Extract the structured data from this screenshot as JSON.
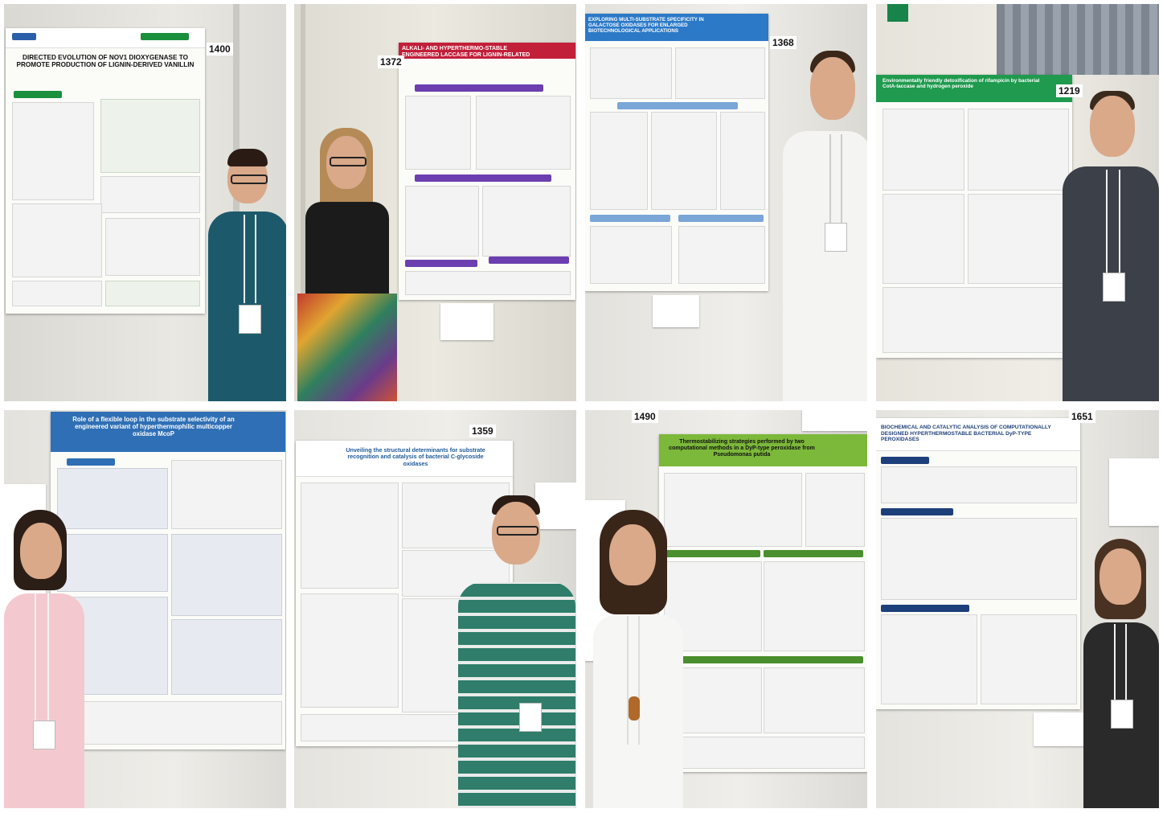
{
  "tiles": [
    {
      "number": "1400",
      "poster_title": "DIRECTED EVOLUTION OF NOV1 DIOXYGENASE TO PROMOTE PRODUCTION OF LIGNIN-DERIVED VANILLIN",
      "accent": "#1a8f3c",
      "shirt": "#1c5a6b"
    },
    {
      "number": "1372",
      "poster_title": "ALKALI- AND HYPERTHERMO-STABLE ENGINEERED LACCASE FOR LIGNIN-RELATED PHENOLICS",
      "accent": "#c21f3a",
      "shirt": "#1b1b1b"
    },
    {
      "number": "1368",
      "poster_title": "EXPLORING MULTI-SUBSTRATE SPECIFICITY IN GALACTOSE OXIDASES FOR ENLARGED BIOTECHNOLOGICAL APPLICATIONS",
      "accent": "#2b79c7",
      "shirt": "#f4f4f2"
    },
    {
      "number": "1219",
      "poster_title": "Environmentally friendly detoxification of rifampicin by bacterial CotA-laccase and hydrogen peroxide",
      "accent": "#1f9a4e",
      "shirt": "#3c4048"
    },
    {
      "number": "",
      "poster_title": "Role of a flexible loop in the substrate selectivity of an engineered variant of hyperthermophilic multicopper oxidase McoP",
      "accent": "#2f6fb5",
      "shirt": "#f3c9cf"
    },
    {
      "number": "1359",
      "poster_title": "Unveiling the structural determinants for substrate recognition and catalysis of bacterial C-glycoside oxidases",
      "accent": "#1d5a9a",
      "shirt": "#2f7d6a"
    },
    {
      "number": "1490",
      "poster_title": "Thermostabilizing strategies performed by two computational methods in a DyP-type peroxidase from Pseudomonas putida",
      "accent": "#7cb83a",
      "shirt": "#f6f6f4"
    },
    {
      "number": "1651",
      "poster_title": "BIOCHEMICAL AND CATALYTIC ANALYSIS OF COMPUTATIONALLY DESIGNED HYPERTHERMOSTABLE BACTERIAL DyP-TYPE PEROXIDASES",
      "accent": "#1d3f7a",
      "shirt": "#2a2a2a"
    }
  ]
}
